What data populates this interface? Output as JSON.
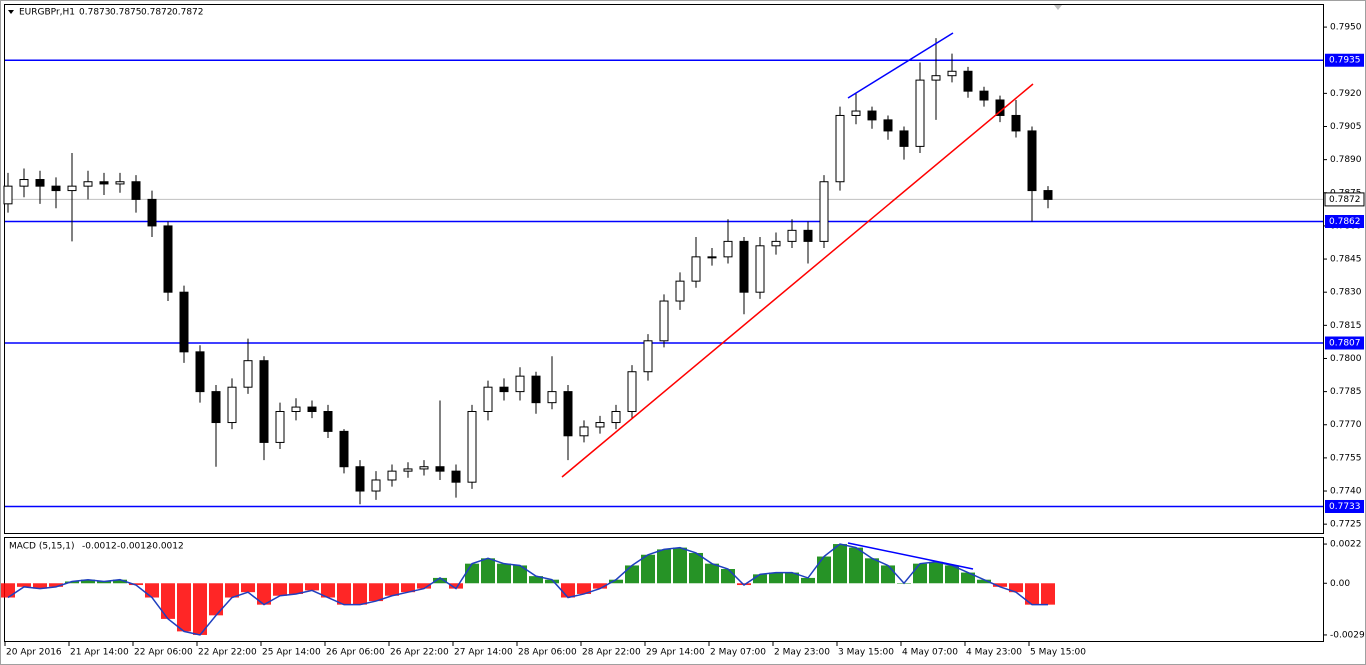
{
  "chart_data": {
    "type": "candlestick",
    "title": "EURGBPr,H1",
    "header_values": [
      0.7873,
      0.7875,
      0.7872,
      0.7872
    ],
    "categories": [
      "20 Apr 2016",
      null,
      null,
      null,
      "21 Apr 14:00",
      null,
      null,
      null,
      "22 Apr 06:00",
      null,
      null,
      null,
      "22 Apr 22:00",
      null,
      null,
      null,
      "25 Apr 14:00",
      null,
      null,
      null,
      "26 Apr 06:00",
      null,
      null,
      null,
      "26 Apr 22:00",
      null,
      null,
      null,
      "27 Apr 14:00",
      null,
      null,
      null,
      "28 Apr 06:00",
      null,
      null,
      null,
      "28 Apr 22:00",
      null,
      null,
      null,
      "29 Apr 14:00",
      null,
      null,
      null,
      "2 May 07:00",
      null,
      null,
      null,
      "2 May 23:00",
      null,
      null,
      null,
      "3 May 15:00",
      null,
      null,
      null,
      "4 May 07:00",
      null,
      null,
      null,
      "4 May 23:00",
      null,
      null,
      null,
      "5 May 15:00",
      null
    ],
    "open": [
      0.787,
      0.7878,
      0.7881,
      0.7878,
      0.7876,
      0.7878,
      0.788,
      0.7879,
      0.788,
      0.7872,
      0.786,
      0.783,
      0.7803,
      0.7785,
      0.7771,
      0.7787,
      0.7799,
      0.7762,
      0.7776,
      0.7778,
      0.7776,
      0.7767,
      0.7751,
      0.774,
      0.7745,
      0.7749,
      0.775,
      0.7751,
      0.7749,
      0.7744,
      0.7776,
      0.7787,
      0.7785,
      0.7792,
      0.778,
      0.7785,
      0.7765,
      0.7769,
      0.7771,
      0.7776,
      0.7794,
      0.7808,
      0.7826,
      0.7835,
      0.7846,
      0.7846,
      0.7853,
      0.783,
      0.7851,
      0.7853,
      0.7858,
      0.7853,
      0.788,
      0.791,
      0.7912,
      0.7908,
      0.7903,
      0.7896,
      0.7926,
      0.7928,
      0.793,
      0.7921,
      0.7917,
      0.791,
      0.7903,
      0.7876
    ],
    "high": [
      0.7884,
      0.7886,
      0.7885,
      0.7882,
      0.7893,
      0.7885,
      0.7884,
      0.7884,
      0.7883,
      0.7876,
      0.7862,
      0.7833,
      0.7806,
      0.7788,
      0.7791,
      0.7809,
      0.7801,
      0.778,
      0.7782,
      0.7781,
      0.7779,
      0.7768,
      0.7754,
      0.7749,
      0.7752,
      0.7753,
      0.7754,
      0.7781,
      0.7752,
      0.7779,
      0.779,
      0.7791,
      0.7796,
      0.7794,
      0.7801,
      0.7788,
      0.7772,
      0.7774,
      0.7779,
      0.7797,
      0.7811,
      0.7829,
      0.7839,
      0.7855,
      0.785,
      0.7863,
      0.7855,
      0.7855,
      0.7857,
      0.7863,
      0.7862,
      0.7883,
      0.7914,
      0.792,
      0.7914,
      0.791,
      0.7905,
      0.7934,
      0.7945,
      0.7938,
      0.7932,
      0.7923,
      0.7919,
      0.7917,
      0.7905,
      0.7878
    ],
    "low": [
      0.7866,
      0.7873,
      0.787,
      0.7868,
      0.7853,
      0.7872,
      0.7874,
      0.7875,
      0.7866,
      0.7855,
      0.7826,
      0.7798,
      0.778,
      0.7751,
      0.7768,
      0.7784,
      0.7754,
      0.7759,
      0.7772,
      0.7773,
      0.7764,
      0.7748,
      0.7734,
      0.7736,
      0.7742,
      0.7746,
      0.7747,
      0.7745,
      0.7737,
      0.7741,
      0.7772,
      0.7781,
      0.7781,
      0.7775,
      0.7777,
      0.7754,
      0.7762,
      0.7766,
      0.7768,
      0.7773,
      0.779,
      0.7805,
      0.7822,
      0.7832,
      0.7842,
      0.7843,
      0.782,
      0.7827,
      0.7847,
      0.785,
      0.7843,
      0.785,
      0.7876,
      0.7906,
      0.7904,
      0.7899,
      0.789,
      0.7893,
      0.7908,
      0.7925,
      0.7918,
      0.7914,
      0.7907,
      0.79,
      0.7862,
      0.7868
    ],
    "close": [
      0.7878,
      0.7881,
      0.7878,
      0.7876,
      0.7878,
      0.788,
      0.7879,
      0.788,
      0.7872,
      0.786,
      0.783,
      0.7803,
      0.7785,
      0.7771,
      0.7787,
      0.7799,
      0.7762,
      0.7776,
      0.7778,
      0.7776,
      0.7767,
      0.7751,
      0.774,
      0.7745,
      0.7749,
      0.775,
      0.7751,
      0.7749,
      0.7744,
      0.7776,
      0.7787,
      0.7785,
      0.7792,
      0.778,
      0.7785,
      0.7765,
      0.7769,
      0.7771,
      0.7776,
      0.7794,
      0.7808,
      0.7826,
      0.7835,
      0.7846,
      0.7846,
      0.7853,
      0.783,
      0.7851,
      0.7853,
      0.7858,
      0.7853,
      0.788,
      0.791,
      0.7912,
      0.7908,
      0.7903,
      0.7896,
      0.7926,
      0.7928,
      0.793,
      0.7921,
      0.7917,
      0.791,
      0.7903,
      0.7876,
      0.7872
    ],
    "up_color": "#ffffff",
    "down_color": "#000000",
    "ylim": [
      0.7721,
      0.796
    ],
    "yticks": [
      {
        "value": 0.795,
        "label": "0.7950"
      },
      {
        "value": 0.792,
        "label": "0.7920"
      },
      0.7905,
      {
        "value": 0.789,
        "label": "0.7890"
      },
      0.7875,
      {
        "value": 0.786,
        "label": "0.7860"
      },
      0.7845,
      {
        "value": 0.783,
        "label": "0.7830"
      },
      0.7815,
      {
        "value": 0.78,
        "label": "0.7800"
      },
      0.7785,
      {
        "value": 0.777,
        "label": "0.7770"
      },
      0.7755,
      {
        "value": 0.774,
        "label": "0.7740"
      },
      0.7725
    ],
    "levels": [
      0.7935,
      0.7862,
      0.7807,
      0.7733
    ],
    "level_color": "#0000ff",
    "current_price": 0.7872,
    "macd": {
      "title": "MACD (5,15,1)",
      "header_values": [
        -0.0012,
        -0.0012,
        -0.0012
      ],
      "values": [
        -0.0008,
        -0.0002,
        -0.0003,
        -0.0002,
        0.0001,
        0.0002,
        0.0001,
        0.0002,
        -0.0001,
        -0.0008,
        -0.002,
        -0.0027,
        -0.0029,
        -0.0018,
        -0.0008,
        -0.0005,
        -0.0012,
        -0.0007,
        -0.0006,
        -0.0004,
        -0.0008,
        -0.0012,
        -0.0012,
        -0.001,
        -0.0007,
        -0.0005,
        -0.0003,
        0.0003,
        -0.0003,
        0.0011,
        0.0014,
        0.0011,
        0.001,
        0.0004,
        0.0002,
        -0.0008,
        -0.0006,
        -0.0003,
        0.0002,
        0.001,
        0.0016,
        0.0019,
        0.002,
        0.0017,
        0.0011,
        0.0008,
        -0.0001,
        0.0005,
        0.0006,
        0.0006,
        0.0003,
        0.0015,
        0.0022,
        0.002,
        0.0014,
        0.001,
        0.0,
        0.0011,
        0.0012,
        0.001,
        0.0006,
        0.0002,
        -0.0002,
        -0.0005,
        -0.0012,
        -0.0012
      ],
      "positive_color": "#008000",
      "negative_color": "#ff0000",
      "line_color": "#1f3fbf",
      "ylim": [
        -0.00324,
        0.00254
      ],
      "yticks": [
        0.0022,
        {
          "value": 0,
          "label": "0.00"
        },
        -0.0029
      ]
    }
  }
}
